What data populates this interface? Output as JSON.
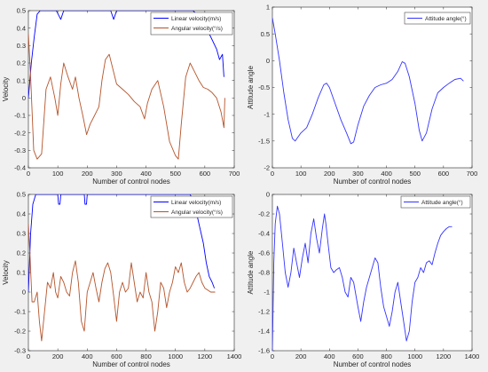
{
  "figure": {
    "description_note": ""
  },
  "chart_data": [
    {
      "type": "line",
      "id": "top-left",
      "xlabel": "Number of control nodes",
      "ylabel": "Velocity",
      "xlim": [
        0,
        700
      ],
      "ylim": [
        -0.4,
        0.5
      ],
      "xticks": [
        0,
        100,
        200,
        300,
        400,
        500,
        600,
        700
      ],
      "yticks": [
        -0.4,
        -0.3,
        -0.2,
        -0.1,
        0,
        0.1,
        0.2,
        0.3,
        0.4,
        0.5
      ],
      "yticklabels": [
        "-0.4",
        "-0.3",
        "-0.2",
        "-0.1",
        "0",
        "0.1",
        "0.2",
        "0.3",
        "0.4",
        "0.5"
      ],
      "legend_position": "top-right",
      "series": [
        {
          "name": "Linear velocity(m/s)",
          "color": "#0000ff",
          "x": [
            0,
            10,
            20,
            30,
            40,
            80,
            95,
            110,
            120,
            130,
            280,
            290,
            300,
            310,
            320,
            560,
            590,
            620,
            640,
            650,
            660,
            665
          ],
          "y": [
            0.0,
            0.2,
            0.35,
            0.48,
            0.5,
            0.5,
            0.5,
            0.45,
            0.5,
            0.5,
            0.5,
            0.45,
            0.5,
            0.5,
            0.5,
            0.5,
            0.45,
            0.35,
            0.28,
            0.22,
            0.25,
            0.12
          ]
        },
        {
          "name": "Angular velocity(°/s)",
          "color": "#b5532a",
          "x": [
            0,
            8,
            18,
            30,
            45,
            60,
            75,
            90,
            100,
            110,
            120,
            135,
            150,
            160,
            172,
            185,
            198,
            210,
            225,
            240,
            250,
            262,
            275,
            285,
            300,
            320,
            340,
            360,
            380,
            395,
            405,
            420,
            440,
            460,
            480,
            500,
            510,
            520,
            535,
            550,
            565,
            580,
            595,
            610,
            625,
            640,
            655,
            665,
            668
          ],
          "y": [
            0.37,
            0.1,
            -0.3,
            -0.35,
            -0.32,
            0.05,
            0.12,
            0.0,
            -0.1,
            0.08,
            0.2,
            0.12,
            0.05,
            0.12,
            0.0,
            -0.1,
            -0.21,
            -0.15,
            -0.1,
            -0.05,
            0.1,
            0.22,
            0.25,
            0.18,
            0.08,
            0.05,
            0.02,
            -0.02,
            -0.05,
            -0.12,
            -0.03,
            0.05,
            0.1,
            -0.05,
            -0.25,
            -0.33,
            -0.35,
            -0.15,
            0.12,
            0.2,
            0.15,
            0.1,
            0.06,
            0.05,
            0.03,
            0.0,
            -0.08,
            -0.17,
            0.0
          ]
        }
      ]
    },
    {
      "type": "line",
      "id": "top-right",
      "xlabel": "Number of control nodes",
      "ylabel": "Attitude angle",
      "xlim": [
        0,
        700
      ],
      "ylim": [
        -2,
        1
      ],
      "xticks": [
        0,
        100,
        200,
        300,
        400,
        500,
        600,
        700
      ],
      "yticks": [
        -2,
        -1.5,
        -1,
        -0.5,
        0,
        0.5,
        1
      ],
      "yticklabels": [
        "-2",
        "-1.5",
        "-1",
        "-0.5",
        "0",
        "0.5",
        "1"
      ],
      "legend_position": "top-right",
      "series": [
        {
          "name": "Attitude angle(°)",
          "color": "#3333ff",
          "x": [
            0,
            10,
            25,
            40,
            55,
            70,
            80,
            100,
            120,
            140,
            160,
            180,
            190,
            200,
            220,
            240,
            260,
            275,
            285,
            300,
            320,
            340,
            360,
            380,
            400,
            420,
            440,
            455,
            465,
            480,
            500,
            515,
            525,
            540,
            560,
            580,
            600,
            620,
            640,
            660,
            670
          ],
          "y": [
            0.8,
            0.5,
            0.0,
            -0.6,
            -1.1,
            -1.45,
            -1.5,
            -1.35,
            -1.25,
            -1.0,
            -0.7,
            -0.45,
            -0.42,
            -0.5,
            -0.8,
            -1.1,
            -1.35,
            -1.55,
            -1.52,
            -1.2,
            -0.85,
            -0.65,
            -0.5,
            -0.45,
            -0.42,
            -0.35,
            -0.2,
            -0.02,
            -0.05,
            -0.3,
            -0.8,
            -1.3,
            -1.5,
            -1.35,
            -0.9,
            -0.6,
            -0.5,
            -0.42,
            -0.35,
            -0.33,
            -0.38
          ]
        }
      ]
    },
    {
      "type": "line",
      "id": "bottom-left",
      "xlabel": "Number of control nodes",
      "ylabel": "Velocity",
      "xlim": [
        0,
        1400
      ],
      "ylim": [
        -0.3,
        0.5
      ],
      "xticks": [
        0,
        200,
        400,
        600,
        800,
        1000,
        1200,
        1400
      ],
      "yticks": [
        -0.3,
        -0.2,
        -0.1,
        0,
        0.1,
        0.2,
        0.3,
        0.4,
        0.5
      ],
      "yticklabels": [
        "-0.3",
        "-0.2",
        "-0.1",
        "0",
        "0.1",
        "0.2",
        "0.3",
        "0.4",
        "0.5"
      ],
      "legend_position": "top-right",
      "series": [
        {
          "name": "Linear velocity(m/s)",
          "color": "#0000ff",
          "x": [
            0,
            15,
            30,
            50,
            200,
            205,
            215,
            220,
            380,
            385,
            395,
            400,
            1100,
            1130,
            1160,
            1190,
            1210,
            1230,
            1250,
            1265
          ],
          "y": [
            0.0,
            0.3,
            0.45,
            0.5,
            0.5,
            0.45,
            0.45,
            0.5,
            0.5,
            0.45,
            0.45,
            0.5,
            0.5,
            0.45,
            0.35,
            0.25,
            0.15,
            0.08,
            0.05,
            0.02
          ]
        },
        {
          "name": "Angular velocity(°/s)",
          "color": "#b5532a",
          "x": [
            0,
            10,
            25,
            40,
            60,
            75,
            90,
            110,
            130,
            150,
            170,
            185,
            200,
            220,
            240,
            260,
            280,
            300,
            320,
            340,
            360,
            380,
            400,
            420,
            440,
            460,
            480,
            500,
            520,
            540,
            560,
            580,
            600,
            620,
            640,
            660,
            680,
            700,
            720,
            740,
            760,
            780,
            800,
            820,
            840,
            860,
            880,
            900,
            920,
            940,
            960,
            980,
            1000,
            1020,
            1040,
            1060,
            1080,
            1100,
            1120,
            1140,
            1160,
            1180,
            1200,
            1220,
            1240,
            1260,
            1270
          ],
          "y": [
            0.35,
            0.2,
            -0.05,
            -0.05,
            0.0,
            -0.15,
            -0.25,
            -0.1,
            0.05,
            0.02,
            0.1,
            0.0,
            -0.03,
            0.08,
            0.05,
            0.0,
            -0.02,
            0.1,
            0.16,
            0.05,
            -0.15,
            -0.2,
            0.0,
            0.05,
            0.1,
            0.02,
            -0.05,
            0.05,
            0.12,
            0.15,
            0.1,
            -0.02,
            -0.15,
            0.0,
            0.05,
            0.0,
            0.02,
            0.15,
            0.05,
            -0.05,
            0.0,
            -0.03,
            0.1,
            0.0,
            -0.05,
            -0.2,
            -0.1,
            0.05,
            0.02,
            -0.08,
            0.0,
            0.05,
            0.13,
            0.1,
            0.15,
            0.05,
            0.0,
            0.02,
            0.05,
            0.08,
            0.1,
            0.05,
            0.02,
            0.01,
            0.0,
            0.0,
            0.0
          ]
        }
      ]
    },
    {
      "type": "line",
      "id": "bottom-right",
      "xlabel": "Number of control nodes",
      "ylabel": "Attitude angle",
      "xlim": [
        0,
        1400
      ],
      "ylim": [
        -1.6,
        0
      ],
      "xticks": [
        0,
        200,
        400,
        600,
        800,
        1000,
        1200,
        1400
      ],
      "yticks": [
        -1.6,
        -1.4,
        -1.2,
        -1,
        -0.8,
        -0.6,
        -0.4,
        -0.2,
        0
      ],
      "yticklabels": [
        "-1.6",
        "-1.4",
        "-1.2",
        "-1",
        "-0.8",
        "-0.6",
        "-0.4",
        "-0.2",
        "0"
      ],
      "legend_position": "top-right",
      "series": [
        {
          "name": "Attitude angle(°)",
          "color": "#3333ff",
          "x": [
            0,
            10,
            20,
            35,
            50,
            70,
            90,
            110,
            130,
            150,
            170,
            190,
            210,
            230,
            250,
            270,
            290,
            310,
            330,
            350,
            365,
            375,
            390,
            410,
            430,
            450,
            470,
            490,
            510,
            530,
            550,
            570,
            600,
            620,
            640,
            660,
            680,
            700,
            720,
            740,
            760,
            780,
            800,
            820,
            840,
            860,
            880,
            900,
            920,
            940,
            960,
            980,
            1000,
            1020,
            1040,
            1060,
            1080,
            1100,
            1120,
            1140,
            1160,
            1180,
            1200,
            1220,
            1240,
            1260
          ],
          "y": [
            -1.6,
            -0.7,
            -0.3,
            -0.12,
            -0.2,
            -0.5,
            -0.8,
            -0.95,
            -0.8,
            -0.55,
            -0.7,
            -0.85,
            -0.65,
            -0.5,
            -0.7,
            -0.4,
            -0.25,
            -0.45,
            -0.6,
            -0.35,
            -0.2,
            -0.3,
            -0.5,
            -0.75,
            -0.8,
            -0.77,
            -0.75,
            -0.85,
            -1.0,
            -1.05,
            -0.85,
            -0.9,
            -1.15,
            -1.3,
            -1.1,
            -0.95,
            -0.85,
            -0.75,
            -0.65,
            -0.7,
            -0.95,
            -1.15,
            -1.25,
            -1.35,
            -1.2,
            -1.0,
            -0.9,
            -1.1,
            -1.3,
            -1.5,
            -1.4,
            -1.1,
            -0.9,
            -0.85,
            -0.75,
            -0.8,
            -0.7,
            -0.68,
            -0.72,
            -0.6,
            -0.5,
            -0.42,
            -0.38,
            -0.35,
            -0.33,
            -0.33
          ]
        }
      ]
    }
  ]
}
